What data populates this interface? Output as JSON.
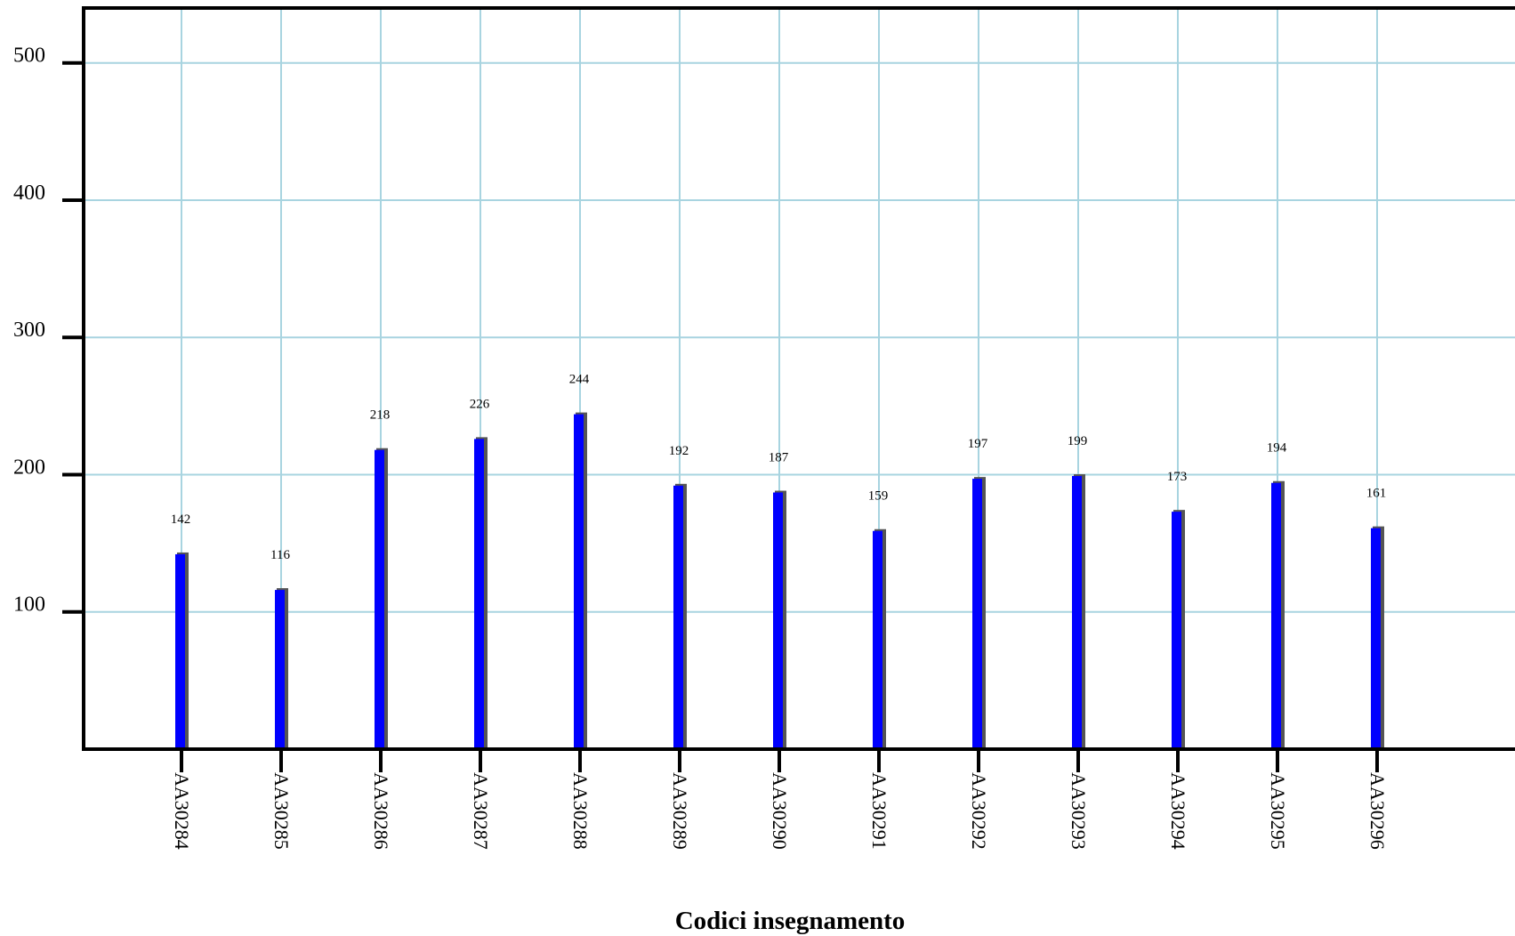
{
  "chart_data": {
    "type": "bar",
    "title": "",
    "xlabel": "Codici insegnamento",
    "ylabel": "",
    "categories": [
      "AA30284",
      "AA30285",
      "AA30286",
      "AA30287",
      "AA30288",
      "AA30289",
      "AA30290",
      "AA30291",
      "AA30292",
      "AA30293",
      "AA30294",
      "AA30295",
      "AA30296"
    ],
    "values": [
      142,
      116,
      218,
      226,
      244,
      192,
      187,
      159,
      197,
      199,
      173,
      194,
      161
    ],
    "ylim": [
      0,
      540
    ],
    "yticks": [
      100,
      200,
      300,
      400,
      500
    ],
    "grid": true,
    "bar_color": "#0000ff",
    "grid_color": "#a8d4e0"
  }
}
